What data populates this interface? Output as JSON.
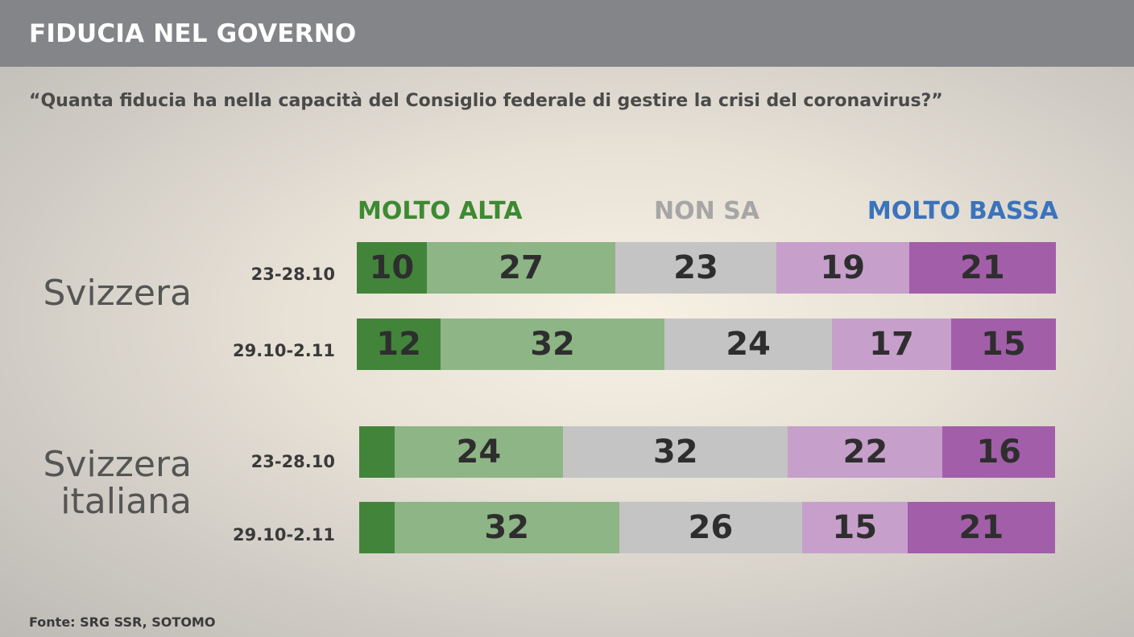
{
  "header": {
    "title": "FIDUCIA NEL GOVERNO",
    "subtitle": "“Quanta fiducia ha nella capacità del Consiglio federale di gestire la crisi del coronavirus?”"
  },
  "legend": {
    "high": "MOLTO ALTA",
    "unknown": "NON SA",
    "low": "MOLTO BASSA"
  },
  "source": "Fonte: SRG SSR, SOTOMO",
  "chart_data": {
    "type": "bar",
    "orientation": "horizontal",
    "stacked": true,
    "title": "FIDUCIA NEL GOVERNO",
    "categories_order": [
      "MOLTO ALTA",
      "",
      "NON SA",
      "",
      "MOLTO BASSA"
    ],
    "colors": [
      "#43843b",
      "#8eb585",
      "#c4c4c4",
      "#c69fcb",
      "#a25ea8"
    ],
    "groups": [
      {
        "label": "Svizzera",
        "rows": [
          {
            "label": "23-28.10",
            "values": [
              10,
              27,
              23,
              19,
              21
            ],
            "shown": [
              true,
              true,
              true,
              true,
              true
            ]
          },
          {
            "label": "29.10-2.11",
            "values": [
              12,
              32,
              24,
              17,
              15
            ],
            "shown": [
              true,
              true,
              true,
              true,
              true
            ]
          }
        ]
      },
      {
        "label": "Svizzera\nitaliana",
        "rows": [
          {
            "label": "23-28.10",
            "values": [
              5,
              24,
              32,
              22,
              16
            ],
            "shown": [
              false,
              true,
              true,
              true,
              true
            ]
          },
          {
            "label": "29.10-2.11",
            "values": [
              5,
              32,
              26,
              15,
              21
            ],
            "shown": [
              false,
              true,
              true,
              true,
              true
            ]
          }
        ]
      }
    ]
  }
}
